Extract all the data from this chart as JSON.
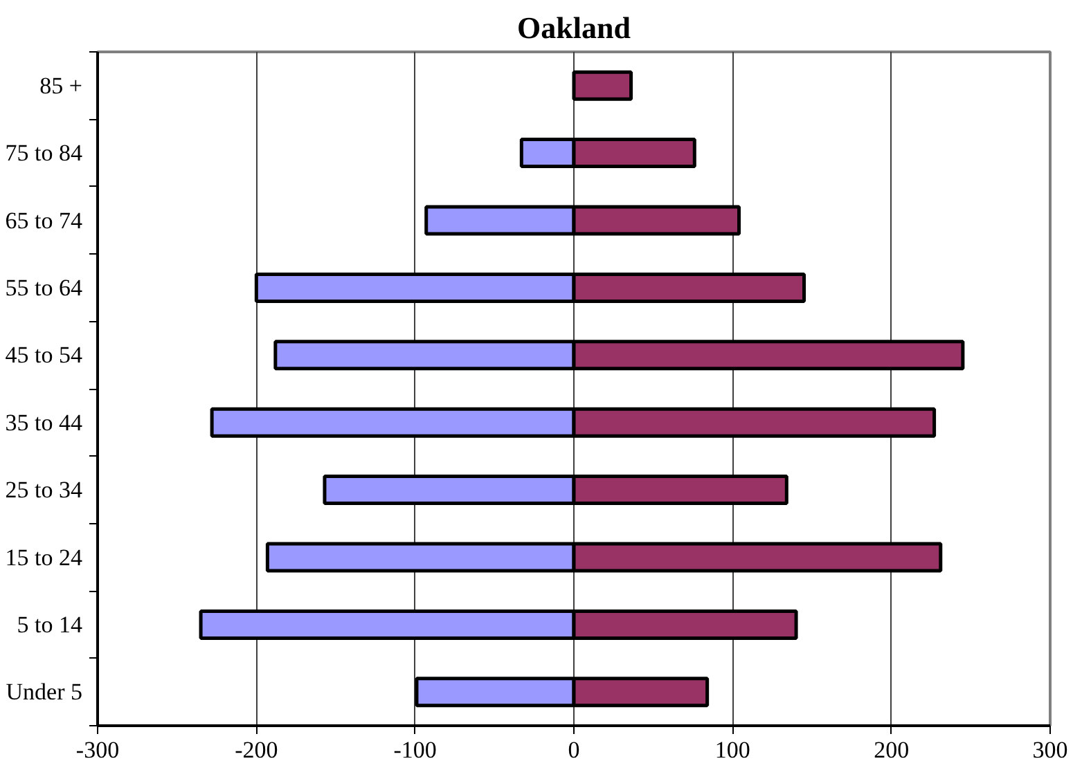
{
  "chart_data": {
    "type": "bar",
    "title": "Oakland",
    "orientation": "horizontal",
    "stacked": true,
    "categories": [
      "85 +",
      "75 to 84",
      "65 to 74",
      "55 to 64",
      "45 to 54",
      "35 to 44",
      "25 to 34",
      "15 to 24",
      "5 to 14",
      "Under 5"
    ],
    "series": [
      {
        "color": "#9999ff",
        "values": [
          null,
          -33,
          -93,
          -200,
          -188,
          -228,
          -157,
          -193,
          -235,
          -99
        ]
      },
      {
        "color": "#993366",
        "values": [
          36,
          76,
          104,
          145,
          245,
          227,
          134,
          231,
          140,
          84
        ]
      }
    ],
    "xlim": [
      -300,
      300
    ],
    "xticks": [
      -300,
      -200,
      -100,
      0,
      100,
      200,
      300
    ],
    "grid": "x"
  }
}
